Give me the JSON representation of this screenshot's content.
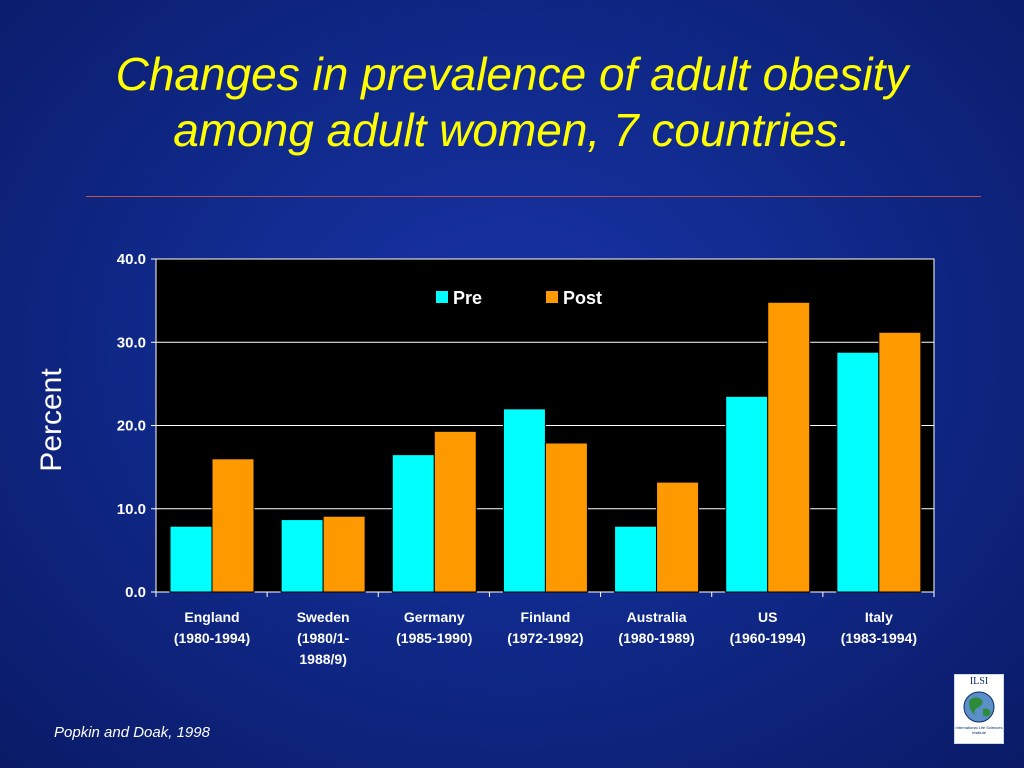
{
  "slide": {
    "title_line1": "Changes in prevalence of adult obesity",
    "title_line2": "among adult women, 7 countries.",
    "source": "Popkin and Doak, 1998",
    "logo_text": "ILSI",
    "logo_subtext": "International Life Sciences Institute"
  },
  "colors": {
    "title": "#ffff00",
    "pre": "#00ffff",
    "post": "#ff9900",
    "plot_background": "#000000",
    "axis_text": "#ffffff"
  },
  "chart_data": {
    "type": "bar",
    "title": "",
    "xlabel": "",
    "ylabel": "Percent",
    "ylim": [
      0,
      40
    ],
    "yticks": [
      "0.0",
      "10.0",
      "20.0",
      "30.0",
      "40.0"
    ],
    "grid": true,
    "legend_position": "top-center",
    "categories": [
      [
        "England",
        "(1980-1994)"
      ],
      [
        "Sweden",
        "(1980/1-",
        "1988/9)"
      ],
      [
        "Germany",
        "(1985-1990)"
      ],
      [
        "Finland",
        "(1972-1992)"
      ],
      [
        "Australia",
        "(1980-1989)"
      ],
      [
        "US",
        "(1960-1994)"
      ],
      [
        "Italy",
        "(1983-1994)"
      ]
    ],
    "series": [
      {
        "name": "Pre",
        "values": [
          7.9,
          8.7,
          16.5,
          22.0,
          7.9,
          23.5,
          28.8
        ]
      },
      {
        "name": "Post",
        "values": [
          16.0,
          9.1,
          19.3,
          17.9,
          13.2,
          34.8,
          31.2
        ]
      }
    ]
  }
}
